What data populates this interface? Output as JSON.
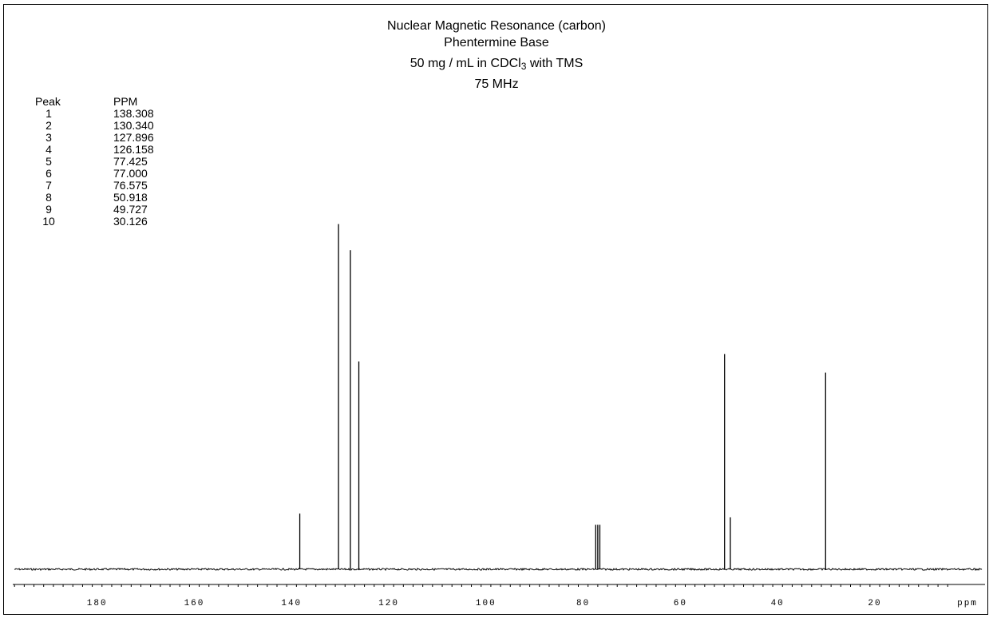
{
  "title_lines": {
    "line1": "Nuclear Magnetic Resonance (carbon)",
    "line2": "Phentermine Base",
    "line3_pre": "50 mg / mL in CDCl",
    "line3_sub": "3",
    "line3_post": " with TMS",
    "line4": "75 MHz"
  },
  "peak_table": {
    "header_peak": "Peak",
    "header_ppm": "PPM",
    "rows": [
      {
        "peak": "1",
        "ppm": "138.308"
      },
      {
        "peak": "2",
        "ppm": "130.340"
      },
      {
        "peak": "3",
        "ppm": "127.896"
      },
      {
        "peak": "4",
        "ppm": "126.158"
      },
      {
        "peak": "5",
        "ppm": "77.425"
      },
      {
        "peak": "6",
        "ppm": "77.000"
      },
      {
        "peak": "7",
        "ppm": "76.575"
      },
      {
        "peak": "8",
        "ppm": "50.918"
      },
      {
        "peak": "9",
        "ppm": "49.727"
      },
      {
        "peak": "10",
        "ppm": "30.126"
      }
    ]
  },
  "chart_data": {
    "type": "line",
    "title": "Nuclear Magnetic Resonance (carbon)",
    "subtitle": "Phentermine Base / 50 mg / mL in CDCl3 with TMS / 75 MHz",
    "xlabel": "ppm",
    "ylabel": "",
    "x_reversed": true,
    "xlim": [
      199,
      -3
    ],
    "ylim": [
      0,
      1.0
    ],
    "xticks": [
      180,
      160,
      140,
      120,
      100,
      80,
      60,
      40,
      20
    ],
    "xtick_labels": [
      "180",
      "160",
      "140",
      "120",
      "100",
      "80",
      "60",
      "40",
      "20"
    ],
    "unit_label": "ppm",
    "grid": false,
    "series": [
      {
        "x": [
          138.308,
          130.34,
          127.896,
          126.158,
          77.425,
          77.0,
          76.575,
          50.918,
          49.727,
          30.126
        ],
        "values": [
          0.15,
          0.93,
          0.86,
          0.56,
          0.12,
          0.12,
          0.12,
          0.58,
          0.14,
          0.53
        ]
      }
    ],
    "color": "#000000"
  }
}
